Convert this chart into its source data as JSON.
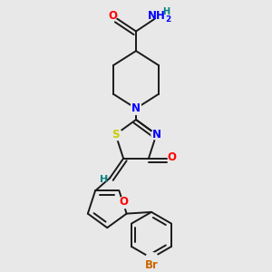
{
  "background_color": "#e8e8e8",
  "bond_color": "#1a1a1a",
  "atom_colors": {
    "N": "#0000ff",
    "O": "#ff0000",
    "S": "#cccc00",
    "Br": "#cc6600",
    "H": "#008080",
    "C": "#1a1a1a"
  },
  "figsize": [
    3.0,
    3.0
  ],
  "dpi": 100
}
